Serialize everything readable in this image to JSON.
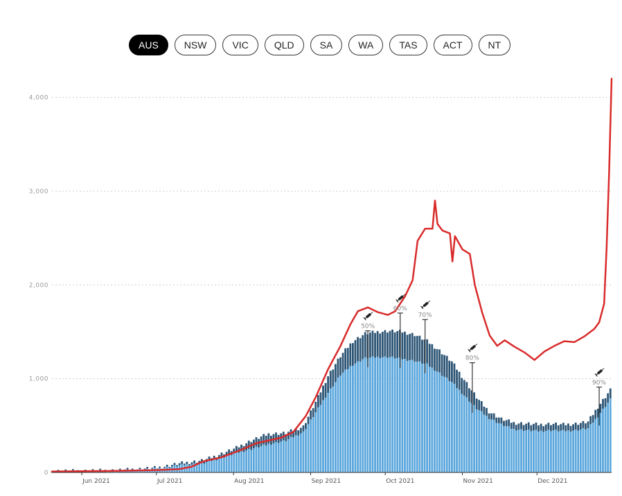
{
  "tabs": [
    {
      "label": "AUS",
      "active": true
    },
    {
      "label": "NSW",
      "active": false
    },
    {
      "label": "VIC",
      "active": false
    },
    {
      "label": "QLD",
      "active": false
    },
    {
      "label": "SA",
      "active": false
    },
    {
      "label": "WA",
      "active": false
    },
    {
      "label": "TAS",
      "active": false
    },
    {
      "label": "ACT",
      "active": false
    },
    {
      "label": "NT",
      "active": false
    }
  ],
  "chart_data": {
    "type": "bar",
    "title": "",
    "xlabel": "",
    "ylabel": "",
    "grid": true,
    "x_range": [
      "2021-05-20",
      "2021-12-31"
    ],
    "ylim": [
      0,
      4300
    ],
    "y_ticks": [
      {
        "value": 0,
        "label": "0"
      },
      {
        "value": 1000,
        "label": "1,000"
      },
      {
        "value": 2000,
        "label": "2,000"
      },
      {
        "value": 3000,
        "label": "3,000"
      },
      {
        "value": 4000,
        "label": "4,000"
      }
    ],
    "x_ticks": [
      {
        "date": "2021-06-01",
        "label": "Jun 2021"
      },
      {
        "date": "2021-07-01",
        "label": "Jul 2021"
      },
      {
        "date": "2021-08-01",
        "label": "Aug 2021"
      },
      {
        "date": "2021-09-01",
        "label": "Sep 2021"
      },
      {
        "date": "2021-10-01",
        "label": "Oct 2021"
      },
      {
        "date": "2021-11-01",
        "label": "Nov 2021"
      },
      {
        "date": "2021-12-01",
        "label": "Dec 2021"
      }
    ],
    "colors": {
      "ward": "#5aa6dc",
      "icu": "#2c5474",
      "cases_line": "#d92a2a",
      "grid": "#cccccc",
      "milestone": "#333333"
    },
    "series": [
      {
        "kind": "bar",
        "stack": "bottom",
        "points": [
          [
            "2021-05-20",
            10
          ],
          [
            "2021-06-01",
            12
          ],
          [
            "2021-06-15",
            15
          ],
          [
            "2021-07-01",
            40
          ],
          [
            "2021-07-10",
            75
          ],
          [
            "2021-07-20",
            100
          ],
          [
            "2021-08-01",
            200
          ],
          [
            "2021-08-08",
            250
          ],
          [
            "2021-08-15",
            300
          ],
          [
            "2021-08-22",
            340
          ],
          [
            "2021-08-29",
            430
          ],
          [
            "2021-09-03",
            640
          ],
          [
            "2021-09-08",
            850
          ],
          [
            "2021-09-13",
            1040
          ],
          [
            "2021-09-18",
            1150
          ],
          [
            "2021-09-23",
            1220
          ],
          [
            "2021-09-28",
            1230
          ],
          [
            "2021-10-03",
            1230
          ],
          [
            "2021-10-08",
            1210
          ],
          [
            "2021-10-13",
            1190
          ],
          [
            "2021-10-18",
            1150
          ],
          [
            "2021-10-23",
            1060
          ],
          [
            "2021-10-28",
            960
          ],
          [
            "2021-11-02",
            820
          ],
          [
            "2021-11-07",
            680
          ],
          [
            "2021-11-12",
            580
          ],
          [
            "2021-11-17",
            510
          ],
          [
            "2021-11-22",
            460
          ],
          [
            "2021-11-27",
            450
          ],
          [
            "2021-12-02",
            440
          ],
          [
            "2021-12-07",
            450
          ],
          [
            "2021-12-12",
            440
          ],
          [
            "2021-12-17",
            450
          ],
          [
            "2021-12-22",
            470
          ],
          [
            "2021-12-26",
            600
          ],
          [
            "2021-12-31",
            780
          ]
        ]
      },
      {
        "kind": "bar",
        "stack": "top",
        "points": [
          [
            "2021-05-20",
            15
          ],
          [
            "2021-06-01",
            17
          ],
          [
            "2021-06-15",
            22
          ],
          [
            "2021-07-01",
            50
          ],
          [
            "2021-07-10",
            95
          ],
          [
            "2021-07-20",
            130
          ],
          [
            "2021-08-01",
            250
          ],
          [
            "2021-08-08",
            340
          ],
          [
            "2021-08-15",
            410
          ],
          [
            "2021-08-22",
            420
          ],
          [
            "2021-08-29",
            490
          ],
          [
            "2021-09-03",
            750
          ],
          [
            "2021-09-08",
            1030
          ],
          [
            "2021-09-13",
            1240
          ],
          [
            "2021-09-18",
            1400
          ],
          [
            "2021-09-23",
            1480
          ],
          [
            "2021-09-28",
            1500
          ],
          [
            "2021-10-03",
            1510
          ],
          [
            "2021-10-08",
            1500
          ],
          [
            "2021-10-13",
            1470
          ],
          [
            "2021-10-18",
            1400
          ],
          [
            "2021-10-23",
            1300
          ],
          [
            "2021-10-28",
            1180
          ],
          [
            "2021-11-02",
            990
          ],
          [
            "2021-11-07",
            800
          ],
          [
            "2021-11-12",
            650
          ],
          [
            "2021-11-17",
            570
          ],
          [
            "2021-11-22",
            530
          ],
          [
            "2021-11-27",
            520
          ],
          [
            "2021-12-02",
            510
          ],
          [
            "2021-12-07",
            520
          ],
          [
            "2021-12-12",
            510
          ],
          [
            "2021-12-17",
            520
          ],
          [
            "2021-12-22",
            540
          ],
          [
            "2021-12-26",
            700
          ],
          [
            "2021-12-31",
            880
          ]
        ]
      },
      {
        "kind": "line",
        "points": [
          [
            "2021-05-20",
            10
          ],
          [
            "2021-06-10",
            15
          ],
          [
            "2021-07-01",
            25
          ],
          [
            "2021-07-10",
            35
          ],
          [
            "2021-07-15",
            60
          ],
          [
            "2021-07-20",
            120
          ],
          [
            "2021-07-27",
            160
          ],
          [
            "2021-08-04",
            240
          ],
          [
            "2021-08-10",
            310
          ],
          [
            "2021-08-15",
            340
          ],
          [
            "2021-08-20",
            370
          ],
          [
            "2021-08-25",
            430
          ],
          [
            "2021-08-30",
            600
          ],
          [
            "2021-09-03",
            800
          ],
          [
            "2021-09-08",
            1100
          ],
          [
            "2021-09-13",
            1350
          ],
          [
            "2021-09-17",
            1580
          ],
          [
            "2021-09-20",
            1720
          ],
          [
            "2021-09-24",
            1760
          ],
          [
            "2021-09-28",
            1710
          ],
          [
            "2021-10-02",
            1680
          ],
          [
            "2021-10-05",
            1720
          ],
          [
            "2021-10-09",
            1880
          ],
          [
            "2021-10-12",
            2050
          ],
          [
            "2021-10-14",
            2470
          ],
          [
            "2021-10-17",
            2600
          ],
          [
            "2021-10-20",
            2600
          ],
          [
            "2021-10-21",
            2900
          ],
          [
            "2021-10-22",
            2650
          ],
          [
            "2021-10-24",
            2580
          ],
          [
            "2021-10-27",
            2550
          ],
          [
            "2021-10-28",
            2250
          ],
          [
            "2021-10-29",
            2520
          ],
          [
            "2021-11-01",
            2380
          ],
          [
            "2021-11-04",
            2330
          ],
          [
            "2021-11-06",
            2000
          ],
          [
            "2021-11-09",
            1700
          ],
          [
            "2021-11-12",
            1460
          ],
          [
            "2021-11-15",
            1350
          ],
          [
            "2021-11-18",
            1410
          ],
          [
            "2021-11-22",
            1340
          ],
          [
            "2021-11-26",
            1280
          ],
          [
            "2021-11-30",
            1200
          ],
          [
            "2021-12-04",
            1290
          ],
          [
            "2021-12-08",
            1350
          ],
          [
            "2021-12-12",
            1400
          ],
          [
            "2021-12-16",
            1390
          ],
          [
            "2021-12-20",
            1450
          ],
          [
            "2021-12-24",
            1530
          ],
          [
            "2021-12-26",
            1600
          ],
          [
            "2021-12-28",
            1800
          ],
          [
            "2021-12-29",
            2400
          ],
          [
            "2021-12-30",
            3200
          ],
          [
            "2021-12-31",
            4200
          ]
        ]
      }
    ],
    "milestones": [
      {
        "date": "2021-09-24",
        "value": 1510,
        "label": "50%",
        "icon": "syringe-icon"
      },
      {
        "date": "2021-10-07",
        "value": 1700,
        "label": "60%",
        "icon": "syringe-icon"
      },
      {
        "date": "2021-10-17",
        "value": 1630,
        "label": "70%",
        "icon": "syringe-icon"
      },
      {
        "date": "2021-11-05",
        "value": 1170,
        "label": "80%",
        "icon": "syringe-icon"
      },
      {
        "date": "2021-12-26",
        "value": 910,
        "label": "90%",
        "icon": "syringe-icon"
      }
    ]
  }
}
